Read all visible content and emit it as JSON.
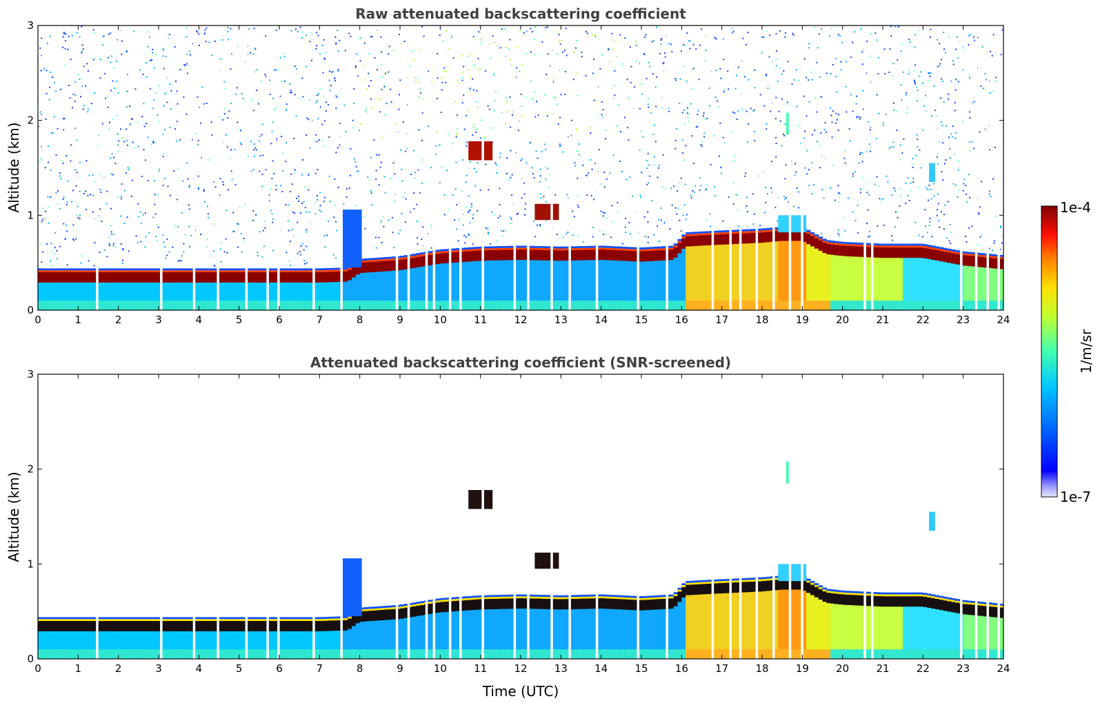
{
  "chart_data": [
    {
      "type": "heatmap",
      "title": "Raw attenuated backscattering coefficient",
      "xlabel": "",
      "ylabel": "Altitude (km)",
      "xlim": [
        0,
        24
      ],
      "ylim": [
        0,
        3
      ],
      "xticks": [
        "0",
        "1",
        "2",
        "3",
        "4",
        "5",
        "6",
        "7",
        "8",
        "9",
        "10",
        "11",
        "12",
        "13",
        "14",
        "15",
        "16",
        "17",
        "18",
        "19",
        "20",
        "21",
        "22",
        "23",
        "24"
      ],
      "yticks": [
        "0",
        "1",
        "2",
        "3"
      ],
      "screened": false,
      "layer": {
        "description_values": "boundary-layer top altitude (km) vs time (UTC)",
        "time": [
          0,
          2,
          4,
          6,
          7,
          7.7,
          8,
          9,
          10,
          11,
          12,
          13,
          14,
          15,
          15.8,
          16.1,
          17,
          18,
          18.5,
          19,
          19.6,
          20,
          21,
          22,
          23,
          24
        ],
        "top_km": [
          0.42,
          0.42,
          0.42,
          0.42,
          0.42,
          0.43,
          0.52,
          0.55,
          0.62,
          0.65,
          0.66,
          0.65,
          0.66,
          0.64,
          0.66,
          0.8,
          0.82,
          0.84,
          0.86,
          0.86,
          0.72,
          0.7,
          0.68,
          0.68,
          0.6,
          0.56
        ]
      },
      "colorbar": {
        "label": "1/m/sr",
        "min": "1e-7",
        "max": "1e-4",
        "scale": "log"
      }
    },
    {
      "type": "heatmap",
      "title": "Attenuated backscattering coefficient (SNR-screened)",
      "xlabel": "Time (UTC)",
      "ylabel": "Altitude (km)",
      "xlim": [
        0,
        24
      ],
      "ylim": [
        0,
        3
      ],
      "xticks": [
        "0",
        "1",
        "2",
        "3",
        "4",
        "5",
        "6",
        "7",
        "8",
        "9",
        "10",
        "11",
        "12",
        "13",
        "14",
        "15",
        "16",
        "17",
        "18",
        "19",
        "20",
        "21",
        "22",
        "23",
        "24"
      ],
      "yticks": [
        "0",
        "1",
        "2",
        "3"
      ],
      "screened": true,
      "colorbar": {
        "label": "1/m/sr",
        "min": "1e-7",
        "max": "1e-4",
        "scale": "log"
      }
    }
  ],
  "colormap": [
    "#dcdcff",
    "#0000ff",
    "#0070ff",
    "#00c8ff",
    "#40ffb0",
    "#b0ff40",
    "#ffe000",
    "#ff8000",
    "#ff1000",
    "#800000"
  ]
}
